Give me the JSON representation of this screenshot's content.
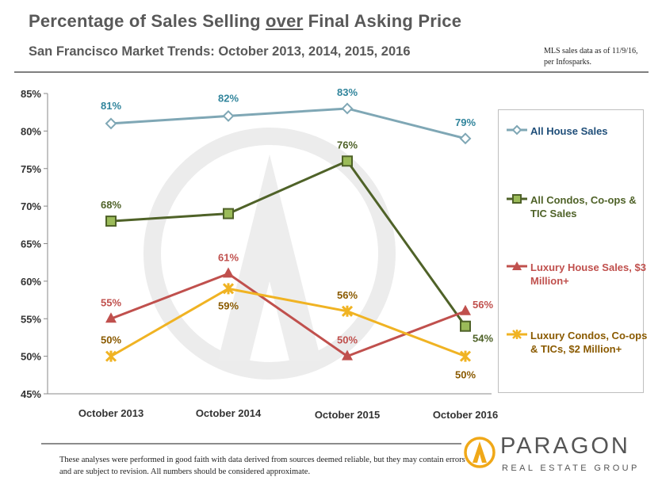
{
  "header": {
    "title_pre": "Percentage of Sales Selling ",
    "title_emph": "over",
    "title_post": " Final Asking Price",
    "subtitle": "San Francisco Market Trends: October 2013, 2014, 2015, 2016",
    "source_note": "MLS sales data as of 11/9/16, per Infosparks."
  },
  "footer": {
    "disclaimer": "These analyses were performed in good faith with data derived from sources deemed reliable, but they may contain errors and are subject to revision. All numbers should be considered approximate.",
    "logo_name": "PARAGON",
    "logo_sub": "REAL ESTATE GROUP"
  },
  "colors": {
    "house": "#7fa7b5",
    "house_text": "#31859c",
    "condo": "#4f6228",
    "condo_fill": "#9bbb59",
    "lux_house": "#c0504d",
    "lux_condo": "#f0b323",
    "lux_condo_text": "#8a5a00"
  },
  "chart_data": {
    "type": "line",
    "title": "Percentage of Sales Selling over Final Asking Price",
    "subtitle": "San Francisco Market Trends: October 2013, 2014, 2015, 2016",
    "categories": [
      "October 2013",
      "October 2014",
      "October 2015",
      "October 2016"
    ],
    "ylim": [
      0.45,
      0.85
    ],
    "yticks": [
      "45%",
      "50%",
      "55%",
      "60%",
      "65%",
      "70%",
      "75%",
      "80%",
      "85%"
    ],
    "grid": false,
    "legend_position": "right",
    "series": [
      {
        "name": "All House Sales",
        "values": [
          0.81,
          0.82,
          0.83,
          0.79
        ],
        "labels": [
          "81%",
          "82%",
          "83%",
          "79%"
        ],
        "marker": "diamond"
      },
      {
        "name": "All Condos, Co-ops & TIC Sales",
        "values": [
          0.68,
          0.69,
          0.76,
          0.54
        ],
        "labels": [
          "68%",
          "",
          "76%",
          "54%"
        ],
        "marker": "square"
      },
      {
        "name": "Luxury House Sales, $3 Million+",
        "values": [
          0.55,
          0.61,
          0.5,
          0.56
        ],
        "labels": [
          "55%",
          "61%",
          "50%",
          "56%"
        ],
        "marker": "triangle"
      },
      {
        "name": "Luxury Condos, Co-ops & TICs, $2 Million+",
        "values": [
          0.5,
          0.59,
          0.56,
          0.5
        ],
        "labels": [
          "50%",
          "59%",
          "56%",
          "50%"
        ],
        "marker": "star"
      }
    ]
  }
}
